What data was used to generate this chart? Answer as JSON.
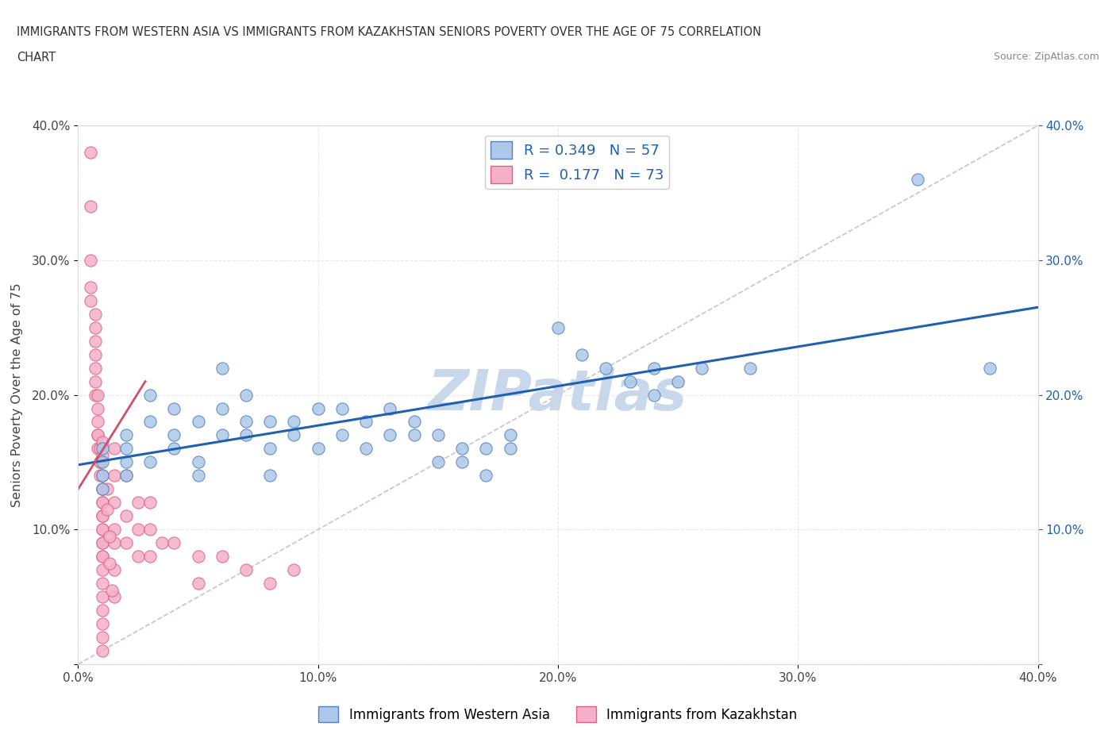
{
  "title_line1": "IMMIGRANTS FROM WESTERN ASIA VS IMMIGRANTS FROM KAZAKHSTAN SENIORS POVERTY OVER THE AGE OF 75 CORRELATION",
  "title_line2": "CHART",
  "source_text": "Source: ZipAtlas.com",
  "ylabel": "Seniors Poverty Over the Age of 75",
  "xlim": [
    0.0,
    0.4
  ],
  "ylim": [
    0.0,
    0.4
  ],
  "xticks": [
    0.0,
    0.1,
    0.2,
    0.3,
    0.4
  ],
  "yticks": [
    0.0,
    0.1,
    0.2,
    0.3,
    0.4
  ],
  "xticklabels": [
    "0.0%",
    "10.0%",
    "20.0%",
    "30.0%",
    "40.0%"
  ],
  "yticklabels_left": [
    "",
    "10.0%",
    "20.0%",
    "30.0%",
    "40.0%"
  ],
  "yticklabels_right": [
    "",
    "10.0%",
    "20.0%",
    "30.0%",
    "40.0%"
  ],
  "blue_R": 0.349,
  "blue_N": 57,
  "pink_R": 0.177,
  "pink_N": 73,
  "legend_label_blue": "Immigrants from Western Asia",
  "legend_label_pink": "Immigrants from Kazakhstan",
  "blue_color": "#adc8e8",
  "pink_color": "#f4b0c8",
  "blue_edge": "#5580c0",
  "pink_edge": "#e06080",
  "trendline_blue_color": "#2060b0",
  "trendline_pink_color": "#d05070",
  "diagonal_color": "#d0c0c8",
  "watermark_color": "#c8d8ea",
  "background_color": "#ffffff",
  "grid_color": "#e8e8e8",
  "blue_scatter": [
    [
      0.01,
      0.15
    ],
    [
      0.01,
      0.14
    ],
    [
      0.01,
      0.13
    ],
    [
      0.01,
      0.16
    ],
    [
      0.02,
      0.17
    ],
    [
      0.02,
      0.15
    ],
    [
      0.02,
      0.14
    ],
    [
      0.02,
      0.16
    ],
    [
      0.03,
      0.18
    ],
    [
      0.03,
      0.15
    ],
    [
      0.03,
      0.2
    ],
    [
      0.04,
      0.17
    ],
    [
      0.04,
      0.16
    ],
    [
      0.04,
      0.19
    ],
    [
      0.05,
      0.15
    ],
    [
      0.05,
      0.18
    ],
    [
      0.05,
      0.14
    ],
    [
      0.06,
      0.22
    ],
    [
      0.06,
      0.19
    ],
    [
      0.06,
      0.17
    ],
    [
      0.07,
      0.2
    ],
    [
      0.07,
      0.18
    ],
    [
      0.07,
      0.17
    ],
    [
      0.08,
      0.18
    ],
    [
      0.08,
      0.16
    ],
    [
      0.08,
      0.14
    ],
    [
      0.09,
      0.18
    ],
    [
      0.09,
      0.17
    ],
    [
      0.1,
      0.19
    ],
    [
      0.1,
      0.16
    ],
    [
      0.11,
      0.19
    ],
    [
      0.11,
      0.17
    ],
    [
      0.12,
      0.18
    ],
    [
      0.12,
      0.16
    ],
    [
      0.13,
      0.19
    ],
    [
      0.13,
      0.17
    ],
    [
      0.14,
      0.18
    ],
    [
      0.14,
      0.17
    ],
    [
      0.15,
      0.17
    ],
    [
      0.15,
      0.15
    ],
    [
      0.16,
      0.16
    ],
    [
      0.16,
      0.15
    ],
    [
      0.17,
      0.16
    ],
    [
      0.17,
      0.14
    ],
    [
      0.18,
      0.17
    ],
    [
      0.18,
      0.16
    ],
    [
      0.2,
      0.25
    ],
    [
      0.21,
      0.23
    ],
    [
      0.22,
      0.22
    ],
    [
      0.23,
      0.21
    ],
    [
      0.24,
      0.22
    ],
    [
      0.24,
      0.2
    ],
    [
      0.25,
      0.21
    ],
    [
      0.26,
      0.22
    ],
    [
      0.35,
      0.36
    ],
    [
      0.28,
      0.22
    ],
    [
      0.38,
      0.22
    ]
  ],
  "pink_scatter": [
    [
      0.005,
      0.38
    ],
    [
      0.005,
      0.34
    ],
    [
      0.005,
      0.3
    ],
    [
      0.005,
      0.28
    ],
    [
      0.005,
      0.27
    ],
    [
      0.007,
      0.26
    ],
    [
      0.007,
      0.25
    ],
    [
      0.007,
      0.24
    ],
    [
      0.007,
      0.23
    ],
    [
      0.007,
      0.22
    ],
    [
      0.007,
      0.21
    ],
    [
      0.007,
      0.2
    ],
    [
      0.008,
      0.2
    ],
    [
      0.008,
      0.19
    ],
    [
      0.008,
      0.18
    ],
    [
      0.008,
      0.17
    ],
    [
      0.008,
      0.17
    ],
    [
      0.008,
      0.16
    ],
    [
      0.009,
      0.16
    ],
    [
      0.009,
      0.15
    ],
    [
      0.009,
      0.15
    ],
    [
      0.009,
      0.14
    ],
    [
      0.01,
      0.14
    ],
    [
      0.01,
      0.13
    ],
    [
      0.01,
      0.13
    ],
    [
      0.01,
      0.12
    ],
    [
      0.01,
      0.12
    ],
    [
      0.01,
      0.11
    ],
    [
      0.01,
      0.11
    ],
    [
      0.01,
      0.1
    ],
    [
      0.01,
      0.1
    ],
    [
      0.01,
      0.09
    ],
    [
      0.01,
      0.09
    ],
    [
      0.01,
      0.08
    ],
    [
      0.01,
      0.08
    ],
    [
      0.01,
      0.07
    ],
    [
      0.01,
      0.06
    ],
    [
      0.01,
      0.05
    ],
    [
      0.01,
      0.04
    ],
    [
      0.01,
      0.03
    ],
    [
      0.01,
      0.02
    ],
    [
      0.01,
      0.01
    ],
    [
      0.015,
      0.16
    ],
    [
      0.015,
      0.14
    ],
    [
      0.015,
      0.12
    ],
    [
      0.015,
      0.1
    ],
    [
      0.015,
      0.09
    ],
    [
      0.015,
      0.07
    ],
    [
      0.015,
      0.05
    ],
    [
      0.02,
      0.14
    ],
    [
      0.02,
      0.11
    ],
    [
      0.02,
      0.09
    ],
    [
      0.025,
      0.12
    ],
    [
      0.025,
      0.1
    ],
    [
      0.025,
      0.08
    ],
    [
      0.03,
      0.12
    ],
    [
      0.03,
      0.1
    ],
    [
      0.03,
      0.08
    ],
    [
      0.035,
      0.09
    ],
    [
      0.04,
      0.09
    ],
    [
      0.05,
      0.08
    ],
    [
      0.05,
      0.06
    ],
    [
      0.06,
      0.08
    ],
    [
      0.07,
      0.07
    ],
    [
      0.08,
      0.06
    ],
    [
      0.09,
      0.07
    ],
    [
      0.01,
      0.165
    ],
    [
      0.01,
      0.155
    ],
    [
      0.012,
      0.13
    ],
    [
      0.012,
      0.115
    ],
    [
      0.013,
      0.095
    ],
    [
      0.013,
      0.075
    ],
    [
      0.014,
      0.055
    ]
  ]
}
